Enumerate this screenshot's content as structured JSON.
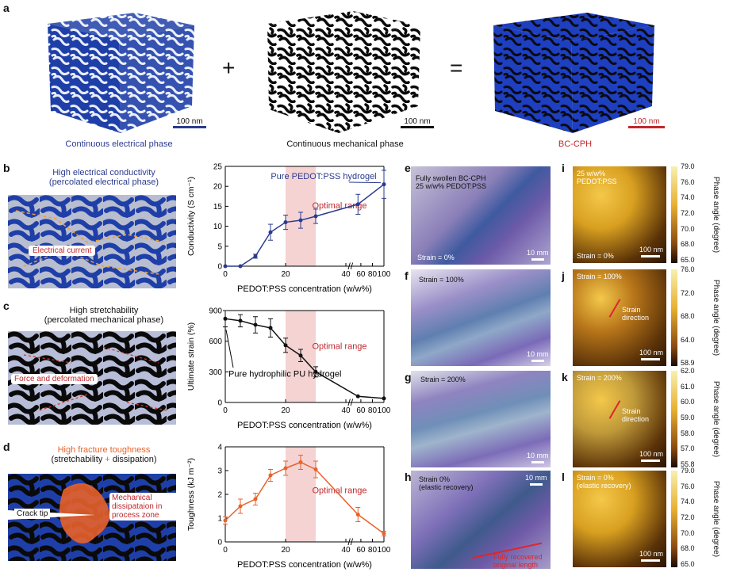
{
  "panel_letters": {
    "a": "a",
    "b": "b",
    "c": "c",
    "d": "d",
    "e": "e",
    "f": "f",
    "g": "g",
    "h": "h",
    "i": "i",
    "j": "j",
    "k": "k",
    "l": "l"
  },
  "panel_a": {
    "operators": {
      "plus": "+",
      "equals": "="
    },
    "cubes": [
      {
        "caption": "Continuous electrical phase",
        "scale": "100 nm",
        "caption_color": "#2b3b8f",
        "bar_color": "#2b3b8f"
      },
      {
        "caption": "Continuous mechanical phase",
        "scale": "100 nm",
        "caption_color": "#111111",
        "bar_color": "#111111"
      },
      {
        "caption": "BC-CPH",
        "scale": "100 nm",
        "caption_color": "#c0282d",
        "bar_color": "#c0282d"
      }
    ]
  },
  "panel_b": {
    "title_line1": "High electrical conductivity",
    "title_line2": "(percolated electrical phase)",
    "title_color": "#2b3b8f",
    "inset_label": "Electrical current"
  },
  "panel_c": {
    "title_line1": "High stretchability",
    "title_line2": "(percolated mechanical phase)",
    "inset_label": "Force and deformation"
  },
  "panel_d": {
    "title_line1": "High fracture toughness",
    "title_line2_a": "(stretchability",
    "title_line2_b": " + ",
    "title_line2_c": "dissipation)",
    "crack_label": "Crack tip",
    "dissipation_label": "Mechanical dissipataion in process zone"
  },
  "chart_data": [
    {
      "type": "line",
      "xlabel": "PEDOT:PSS concentration (w/w%)",
      "ylabel": "Conductivity (S cm⁻¹)",
      "x": [
        0,
        5,
        10,
        15,
        20,
        25,
        30,
        55,
        100
      ],
      "y": [
        0,
        0,
        2.5,
        8.5,
        11,
        11.5,
        12.5,
        15.5,
        20.5
      ],
      "err": [
        0,
        0,
        0.5,
        2,
        1.8,
        2,
        1.8,
        2.5,
        3.5
      ],
      "xticks": [
        "0",
        "20",
        "40",
        "60",
        "80",
        "100"
      ],
      "yticks": [
        "0",
        "5",
        "10",
        "15",
        "20",
        "25"
      ],
      "ylim": [
        0,
        25
      ],
      "highlight": "Optimal range",
      "annotation": "Pure PEDOT:PSS hydrogel",
      "color": "#2b3b8f"
    },
    {
      "type": "line",
      "xlabel": "PEDOT:PSS concentration (w/w%)",
      "ylabel": "Ultimate strain (%)",
      "x": [
        0,
        5,
        10,
        15,
        20,
        25,
        30,
        55,
        100
      ],
      "y": [
        820,
        800,
        760,
        730,
        560,
        460,
        300,
        60,
        40
      ],
      "err": [
        80,
        60,
        80,
        90,
        70,
        60,
        50,
        0,
        0
      ],
      "xticks": [
        "0",
        "20",
        "40",
        "60",
        "80",
        "100"
      ],
      "yticks": [
        "0",
        "300",
        "600",
        "900"
      ],
      "ylim": [
        0,
        900
      ],
      "highlight": "Optimal range",
      "annotation": "Pure hydrophilic PU hydrogel",
      "color": "#111111"
    },
    {
      "type": "line",
      "xlabel": "PEDOT:PSS concentration (w/w%)",
      "ylabel": "Toughness (kJ m⁻²)",
      "x": [
        0,
        5,
        10,
        15,
        20,
        25,
        30,
        55,
        100
      ],
      "y": [
        0.9,
        1.5,
        1.8,
        2.8,
        3.1,
        3.35,
        3.05,
        1.15,
        0.35
      ],
      "err": [
        0.15,
        0.3,
        0.25,
        0.25,
        0.3,
        0.3,
        0.35,
        0.3,
        0.1
      ],
      "xticks": [
        "0",
        "20",
        "40",
        "60",
        "80",
        "100"
      ],
      "yticks": [
        "0",
        "1",
        "2",
        "3",
        "4"
      ],
      "ylim": [
        0,
        4
      ],
      "highlight": "Optimal range",
      "color": "#e8622a"
    }
  ],
  "photos": [
    {
      "label_top": "Fully swollen BC-CPH",
      "label_top2": "25 w/w% PEDOT:PSS",
      "strain": "Strain = 0%",
      "scale": "10 mm"
    },
    {
      "label_top": "Strain = 100%",
      "scale": "10 mm"
    },
    {
      "label_top": "Strain = 200%",
      "scale": "10 mm"
    },
    {
      "label_top": "Strain 0%",
      "label_top2": "(elastic recovery)",
      "scale": "10 mm",
      "note1": "Fully recovered",
      "note2": "original length"
    }
  ],
  "afm": [
    {
      "label": "25 w/w%",
      "label2": "PEDOT:PSS",
      "strain": "Strain = 0%",
      "scale": "100 nm",
      "ticks": [
        "79.0",
        "76.0",
        "74.0",
        "72.0",
        "70.0",
        "68.0",
        "65.0"
      ],
      "axis": "Phase angle (degree)"
    },
    {
      "label": "Strain = 100%",
      "arrow": "Strain direction",
      "scale": "100 nm",
      "ticks": [
        "76.0",
        "72.0",
        "68.0",
        "64.0",
        "58.9"
      ],
      "axis": "Phase angle (degree)"
    },
    {
      "label": "Strain = 200%",
      "arrow": "Strain direction",
      "scale": "100 nm",
      "ticks": [
        "62.0",
        "61.0",
        "60.0",
        "59.0",
        "58.0",
        "57.0",
        "55.8"
      ],
      "axis": "Phase angle (degree)"
    },
    {
      "label": "Strain = 0%",
      "label2": "(elastic recovery)",
      "scale": "100 nm",
      "ticks": [
        "79.0",
        "76.0",
        "74.0",
        "72.0",
        "70.0",
        "68.0",
        "65.0"
      ],
      "axis": "Phase angle (degree)"
    }
  ]
}
